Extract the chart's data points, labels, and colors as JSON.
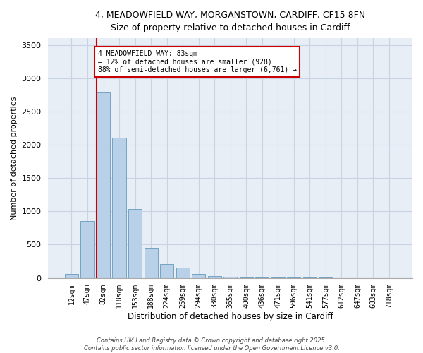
{
  "title_line1": "4, MEADOWFIELD WAY, MORGANSTOWN, CARDIFF, CF15 8FN",
  "title_line2": "Size of property relative to detached houses in Cardiff",
  "xlabel": "Distribution of detached houses by size in Cardiff",
  "ylabel": "Number of detached properties",
  "categories": [
    "12sqm",
    "47sqm",
    "82sqm",
    "118sqm",
    "153sqm",
    "188sqm",
    "224sqm",
    "259sqm",
    "294sqm",
    "330sqm",
    "365sqm",
    "400sqm",
    "436sqm",
    "471sqm",
    "506sqm",
    "541sqm",
    "577sqm",
    "612sqm",
    "647sqm",
    "683sqm",
    "718sqm"
  ],
  "values": [
    55,
    850,
    2780,
    2110,
    1030,
    455,
    210,
    150,
    60,
    30,
    20,
    10,
    5,
    5,
    2,
    1,
    1,
    0,
    0,
    0,
    0
  ],
  "bar_color": "#b8d0e8",
  "bar_edge_color": "#6699bb",
  "grid_color": "#c8d4e4",
  "background_color": "#e8eef6",
  "annotation_box_color": "#cc0000",
  "property_line_color": "#cc0000",
  "property_bin_index": 2,
  "annotation_text": "4 MEADOWFIELD WAY: 83sqm\n← 12% of detached houses are smaller (928)\n88% of semi-detached houses are larger (6,761) →",
  "footer_text": "Contains HM Land Registry data © Crown copyright and database right 2025.\nContains public sector information licensed under the Open Government Licence v3.0.",
  "ylim": [
    0,
    3600
  ],
  "yticks": [
    0,
    500,
    1000,
    1500,
    2000,
    2500,
    3000,
    3500
  ]
}
